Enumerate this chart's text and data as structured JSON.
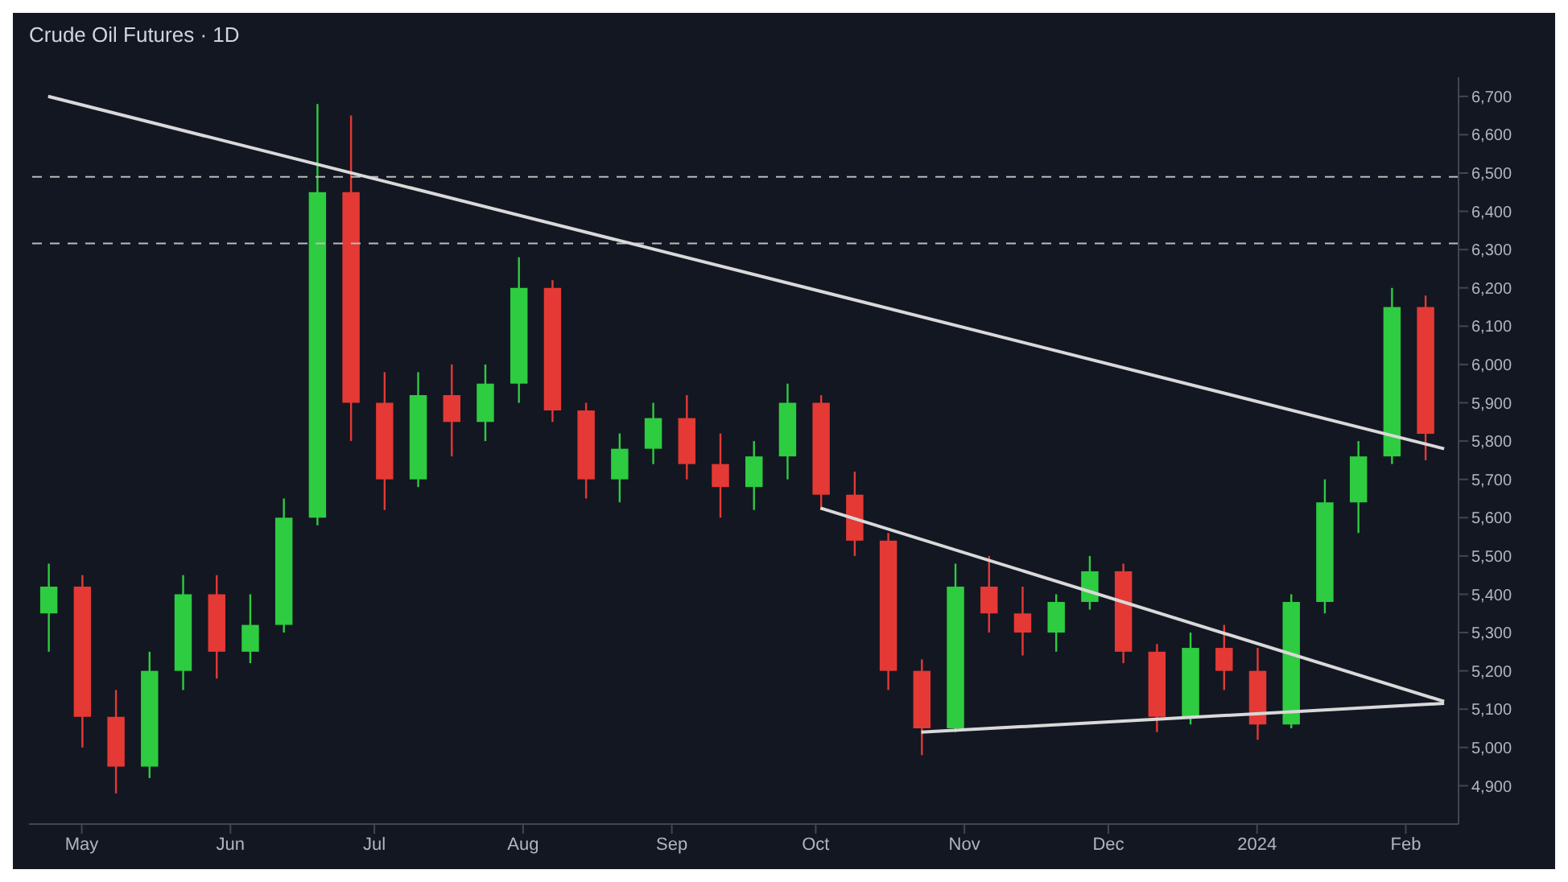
{
  "chart_data": {
    "type": "candlestick",
    "title": "Crude Oil Futures · 1D",
    "x": [
      "2023-04-24",
      "2023-05-01",
      "2023-05-08",
      "2023-05-15",
      "2023-05-22",
      "2023-05-29",
      "2023-06-05",
      "2023-06-12",
      "2023-06-19",
      "2023-06-26",
      "2023-07-03",
      "2023-07-10",
      "2023-07-17",
      "2023-07-24",
      "2023-07-31",
      "2023-08-07",
      "2023-08-14",
      "2023-08-21",
      "2023-08-28",
      "2023-09-04",
      "2023-09-11",
      "2023-09-18",
      "2023-09-25",
      "2023-10-02",
      "2023-10-09",
      "2023-10-16",
      "2023-10-23",
      "2023-10-30",
      "2023-11-06",
      "2023-11-13",
      "2023-11-20",
      "2023-11-27",
      "2023-12-04",
      "2023-12-11",
      "2023-12-18",
      "2023-12-25",
      "2024-01-01",
      "2024-01-08",
      "2024-01-15",
      "2024-01-22",
      "2024-01-29",
      "2024-02-05"
    ],
    "ohlc": [
      [
        5350,
        5480,
        5250,
        5420
      ],
      [
        5420,
        5450,
        5000,
        5080
      ],
      [
        5080,
        5150,
        4880,
        4950
      ],
      [
        4950,
        5250,
        4920,
        5200
      ],
      [
        5200,
        5450,
        5150,
        5400
      ],
      [
        5400,
        5450,
        5180,
        5250
      ],
      [
        5250,
        5400,
        5220,
        5320
      ],
      [
        5320,
        5650,
        5300,
        5600
      ],
      [
        5600,
        6680,
        5580,
        6450
      ],
      [
        6450,
        6650,
        5800,
        5900
      ],
      [
        5900,
        5980,
        5620,
        5700
      ],
      [
        5700,
        5980,
        5680,
        5920
      ],
      [
        5920,
        6000,
        5760,
        5850
      ],
      [
        5850,
        6000,
        5800,
        5950
      ],
      [
        5950,
        6280,
        5900,
        6200
      ],
      [
        6200,
        6220,
        5850,
        5880
      ],
      [
        5880,
        5900,
        5650,
        5700
      ],
      [
        5700,
        5820,
        5640,
        5780
      ],
      [
        5780,
        5900,
        5740,
        5860
      ],
      [
        5860,
        5920,
        5700,
        5740
      ],
      [
        5740,
        5820,
        5600,
        5680
      ],
      [
        5680,
        5800,
        5620,
        5760
      ],
      [
        5760,
        5950,
        5700,
        5900
      ],
      [
        5900,
        5920,
        5620,
        5660
      ],
      [
        5660,
        5720,
        5500,
        5540
      ],
      [
        5540,
        5560,
        5150,
        5200
      ],
      [
        5200,
        5230,
        4980,
        5050
      ],
      [
        5050,
        5480,
        5040,
        5420
      ],
      [
        5420,
        5500,
        5300,
        5350
      ],
      [
        5350,
        5420,
        5240,
        5300
      ],
      [
        5300,
        5400,
        5250,
        5380
      ],
      [
        5380,
        5500,
        5360,
        5460
      ],
      [
        5460,
        5480,
        5220,
        5250
      ],
      [
        5250,
        5270,
        5040,
        5080
      ],
      [
        5080,
        5300,
        5060,
        5260
      ],
      [
        5260,
        5320,
        5150,
        5200
      ],
      [
        5200,
        5260,
        5020,
        5060
      ],
      [
        5060,
        5400,
        5050,
        5380
      ],
      [
        5380,
        5700,
        5350,
        5640
      ],
      [
        5640,
        5800,
        5560,
        5760
      ],
      [
        5760,
        6200,
        5740,
        6150
      ],
      [
        6150,
        6180,
        5750,
        5819
      ]
    ],
    "colors": [
      "#2ecc40",
      "#e53935",
      "#e53935",
      "#2ecc40",
      "#2ecc40",
      "#e53935",
      "#2ecc40",
      "#2ecc40",
      "#2ecc40",
      "#e53935",
      "#e53935",
      "#2ecc40",
      "#e53935",
      "#2ecc40",
      "#2ecc40",
      "#e53935",
      "#e53935",
      "#2ecc40",
      "#2ecc40",
      "#e53935",
      "#e53935",
      "#2ecc40",
      "#2ecc40",
      "#e53935",
      "#e53935",
      "#e53935",
      "#e53935",
      "#2ecc40",
      "#e53935",
      "#e53935",
      "#2ecc40",
      "#2ecc40",
      "#e53935",
      "#e53935",
      "#2ecc40",
      "#e53935",
      "#e53935",
      "#2ecc40",
      "#2ecc40",
      "#2ecc40",
      "#2ecc40",
      "#e53935"
    ],
    "series": [
      {
        "type": "line",
        "color": "#d9d9d9",
        "x": [
          "2023-04-24",
          "2024-02-09"
        ],
        "values": [
          6700,
          5780
        ]
      },
      {
        "type": "line",
        "color": "#d9d9d9",
        "x": [
          "2023-10-02",
          "2024-02-09"
        ],
        "values": [
          5625,
          5120
        ]
      },
      {
        "type": "line",
        "color": "#d9d9d9",
        "x": [
          "2023-10-23",
          "2024-02-09"
        ],
        "values": [
          5040,
          5115
        ]
      }
    ],
    "ref_lines": [
      {
        "axis": "y",
        "value": 6490,
        "color": "#bbbbbb",
        "line_style": "dashed"
      },
      {
        "axis": "y",
        "value": 6316,
        "color": "#bbbbbb",
        "line_style": "dashed"
      }
    ],
    "xlim": [
      "2023-04-20",
      "2024-02-12"
    ],
    "xticks": [
      {
        "value": "2023-05-01",
        "label": "May"
      },
      {
        "value": "2023-06-01",
        "label": "Jun"
      },
      {
        "value": "2023-07-01",
        "label": "Jul"
      },
      {
        "value": "2023-08-01",
        "label": "Aug"
      },
      {
        "value": "2023-09-01",
        "label": "Sep"
      },
      {
        "value": "2023-10-01",
        "label": "Oct"
      },
      {
        "value": "2023-11-01",
        "label": "Nov"
      },
      {
        "value": "2023-12-01",
        "label": "Dec"
      },
      {
        "value": "2024-01-01",
        "label": "2024"
      },
      {
        "value": "2024-02-01",
        "label": "Feb"
      }
    ],
    "ylim": [
      4800,
      6750
    ],
    "yticks": [
      {
        "value": 4900,
        "label": "4,900"
      },
      {
        "value": 5000,
        "label": "5,000"
      },
      {
        "value": 5100,
        "label": "5,100"
      },
      {
        "value": 5200,
        "label": "5,200"
      },
      {
        "value": 5300,
        "label": "5,300"
      },
      {
        "value": 5400,
        "label": "5,400"
      },
      {
        "value": 5500,
        "label": "5,500"
      },
      {
        "value": 5600,
        "label": "5,600"
      },
      {
        "value": 5700,
        "label": "5,700"
      },
      {
        "value": 5800,
        "label": "5,800"
      },
      {
        "value": 5900,
        "label": "5,900"
      },
      {
        "value": 6000,
        "label": "6,000"
      },
      {
        "value": 6100,
        "label": "6,100"
      },
      {
        "value": 6200,
        "label": "6,200"
      },
      {
        "value": 6300,
        "label": "6,300"
      },
      {
        "value": 6400,
        "label": "6,400"
      },
      {
        "value": 6500,
        "label": "6,500"
      },
      {
        "value": 6600,
        "label": "6,600"
      },
      {
        "value": 6700,
        "label": "6,700"
      }
    ],
    "grid": false
  }
}
